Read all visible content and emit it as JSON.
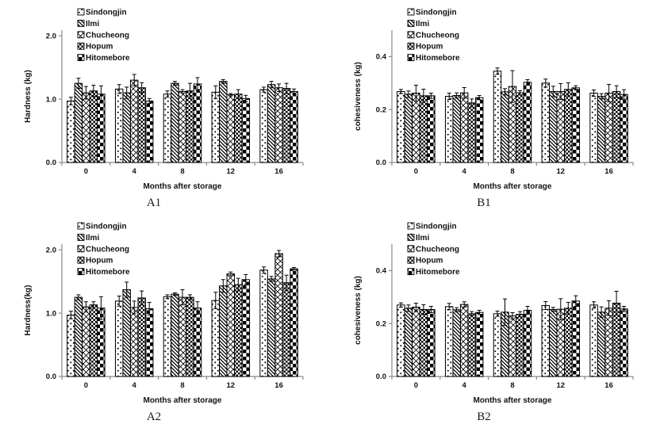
{
  "figure": {
    "background": "#ffffff",
    "series_labels": [
      "Sindongjin",
      "Ilmi",
      "Chucheong",
      "Hopum",
      "Hitomebore"
    ],
    "series_patterns": [
      "dots",
      "diagonal-lines",
      "diagonal-crosshatch",
      "small-checker",
      "large-checker"
    ],
    "colors": {
      "bar_fill": "#ffffff",
      "bar_outline": "#000000",
      "error_bar": "#000000",
      "axis_line": "#8a8a8a",
      "text": "#111111"
    }
  },
  "chart_data": [
    {
      "id": "A1",
      "type": "bar",
      "caption": "A1",
      "xlabel": "Months after storage",
      "ylabel": "Hardness (kg)",
      "categories": [
        "0",
        "4",
        "8",
        "12",
        "16"
      ],
      "yticks": [
        "0.0",
        "1.0",
        "2.0"
      ],
      "ytick_values": [
        0,
        1,
        2
      ],
      "ylim": [
        0,
        2.09
      ],
      "grid": false,
      "legend_position": "top-left-inside",
      "error_bars": true,
      "series": [
        {
          "name": "Sindongjin",
          "values": [
            0.97,
            1.16,
            1.08,
            1.11,
            1.15
          ],
          "errors": [
            0.06,
            0.07,
            0.05,
            0.1,
            0.04
          ]
        },
        {
          "name": "Ilmi",
          "values": [
            1.25,
            1.1,
            1.25,
            1.28,
            1.23
          ],
          "errors": [
            0.08,
            0.09,
            0.03,
            0.03,
            0.05
          ]
        },
        {
          "name": "Chucheong",
          "values": [
            1.1,
            1.3,
            1.12,
            1.07,
            1.18
          ],
          "errors": [
            0.1,
            0.09,
            0.03,
            0.02,
            0.06
          ]
        },
        {
          "name": "Hopum",
          "values": [
            1.13,
            1.18,
            1.13,
            1.08,
            1.17
          ],
          "errors": [
            0.09,
            0.08,
            0.12,
            0.07,
            0.08
          ]
        },
        {
          "name": "Hitomebore",
          "values": [
            1.08,
            0.97,
            1.24,
            1.01,
            1.12
          ],
          "errors": [
            0.13,
            0.04,
            0.1,
            0.05,
            0.04
          ]
        }
      ]
    },
    {
      "id": "B1",
      "type": "bar",
      "caption": "B1",
      "xlabel": "Months after storage",
      "ylabel": "cohesiveness (kg)",
      "categories": [
        "0",
        "4",
        "8",
        "12",
        "16"
      ],
      "yticks": [
        "0.0",
        "0.2",
        "0.4"
      ],
      "ytick_values": [
        0,
        0.2,
        0.4
      ],
      "ylim": [
        0,
        0.5
      ],
      "grid": false,
      "legend_position": "top-left-inside",
      "error_bars": true,
      "series": [
        {
          "name": "Sindongjin",
          "values": [
            0.268,
            0.25,
            0.345,
            0.3,
            0.262
          ],
          "errors": [
            0.008,
            0.012,
            0.012,
            0.015,
            0.012
          ]
        },
        {
          "name": "Ilmi",
          "values": [
            0.258,
            0.253,
            0.267,
            0.268,
            0.25
          ],
          "errors": [
            0.012,
            0.01,
            0.012,
            0.02,
            0.01
          ]
        },
        {
          "name": "Chucheong",
          "values": [
            0.262,
            0.263,
            0.287,
            0.268,
            0.262
          ],
          "errors": [
            0.03,
            0.02,
            0.06,
            0.03,
            0.033
          ]
        },
        {
          "name": "Hopum",
          "values": [
            0.252,
            0.225,
            0.263,
            0.276,
            0.268
          ],
          "errors": [
            0.025,
            0.015,
            0.008,
            0.025,
            0.022
          ]
        },
        {
          "name": "Hitomebore",
          "values": [
            0.252,
            0.245,
            0.303,
            0.282,
            0.257
          ],
          "errors": [
            0.01,
            0.008,
            0.01,
            0.008,
            0.018
          ]
        }
      ]
    },
    {
      "id": "A2",
      "type": "bar",
      "caption": "A2",
      "xlabel": "Months after storage",
      "ylabel": "Hardness(kg)",
      "categories": [
        "0",
        "4",
        "8",
        "12",
        "16"
      ],
      "yticks": [
        "0.0",
        "1.0",
        "2.0"
      ],
      "ytick_values": [
        0,
        1,
        2
      ],
      "ylim": [
        0,
        2.09
      ],
      "grid": false,
      "legend_position": "top-left-inside",
      "error_bars": true,
      "series": [
        {
          "name": "Sindongjin",
          "values": [
            0.97,
            1.19,
            1.26,
            1.2,
            1.68
          ],
          "errors": [
            0.06,
            0.08,
            0.03,
            0.13,
            0.05
          ]
        },
        {
          "name": "Ilmi",
          "values": [
            1.25,
            1.37,
            1.3,
            1.43,
            1.54
          ],
          "errors": [
            0.04,
            0.12,
            0.02,
            0.1,
            0.04
          ]
        },
        {
          "name": "Chucheong",
          "values": [
            1.1,
            1.09,
            1.25,
            1.62,
            1.94
          ],
          "errors": [
            0.08,
            0.1,
            0.12,
            0.03,
            0.05
          ]
        },
        {
          "name": "Hopum",
          "values": [
            1.13,
            1.24,
            1.25,
            1.45,
            1.48
          ],
          "errors": [
            0.05,
            0.11,
            0.04,
            0.1,
            0.12
          ]
        },
        {
          "name": "Hitomebore",
          "values": [
            1.08,
            1.07,
            1.08,
            1.53,
            1.7
          ],
          "errors": [
            0.18,
            0.1,
            0.1,
            0.08,
            0.02
          ]
        }
      ]
    },
    {
      "id": "B2",
      "type": "bar",
      "caption": "B2",
      "xlabel": "Months after storage",
      "ylabel": "cohesiveness (kg)",
      "categories": [
        "0",
        "4",
        "8",
        "12",
        "16"
      ],
      "yticks": [
        "0.0",
        "0.2",
        "0.4"
      ],
      "ytick_values": [
        0,
        0.2,
        0.4
      ],
      "ylim": [
        0,
        0.5
      ],
      "grid": false,
      "legend_position": "top-left-inside",
      "error_bars": true,
      "series": [
        {
          "name": "Sindongjin",
          "values": [
            0.27,
            0.264,
            0.237,
            0.268,
            0.27
          ],
          "errors": [
            0.008,
            0.012,
            0.01,
            0.015,
            0.012
          ]
        },
        {
          "name": "Ilmi",
          "values": [
            0.258,
            0.252,
            0.243,
            0.253,
            0.243
          ],
          "errors": [
            0.012,
            0.008,
            0.05,
            0.008,
            0.02
          ]
        },
        {
          "name": "Chucheong",
          "values": [
            0.262,
            0.272,
            0.229,
            0.254,
            0.258
          ],
          "errors": [
            0.015,
            0.01,
            0.012,
            0.04,
            0.028
          ]
        },
        {
          "name": "Hopum",
          "values": [
            0.253,
            0.237,
            0.235,
            0.258,
            0.277
          ],
          "errors": [
            0.018,
            0.008,
            0.01,
            0.022,
            0.045
          ]
        },
        {
          "name": "Hitomebore",
          "values": [
            0.253,
            0.242,
            0.25,
            0.285,
            0.255
          ],
          "errors": [
            0.012,
            0.008,
            0.015,
            0.02,
            0.01
          ]
        }
      ]
    }
  ]
}
